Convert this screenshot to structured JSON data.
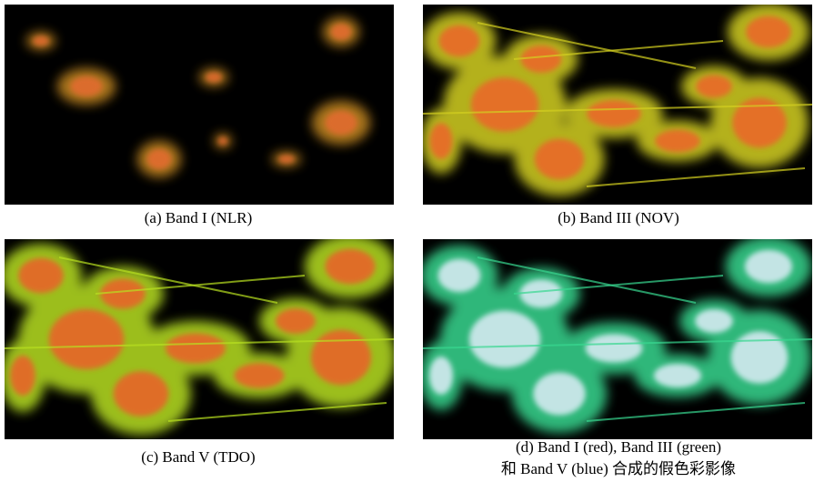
{
  "figure": {
    "panels": [
      {
        "caption": "(a) Band I (NLR)"
      },
      {
        "caption": "(b) Band III (NOV)"
      },
      {
        "caption": "(c) Band V (TDO)"
      },
      {
        "caption_lines": [
          "(d) Band I (red), Band III (green)",
          "和 Band V (blue) 合成的假色彩影像"
        ]
      }
    ]
  }
}
